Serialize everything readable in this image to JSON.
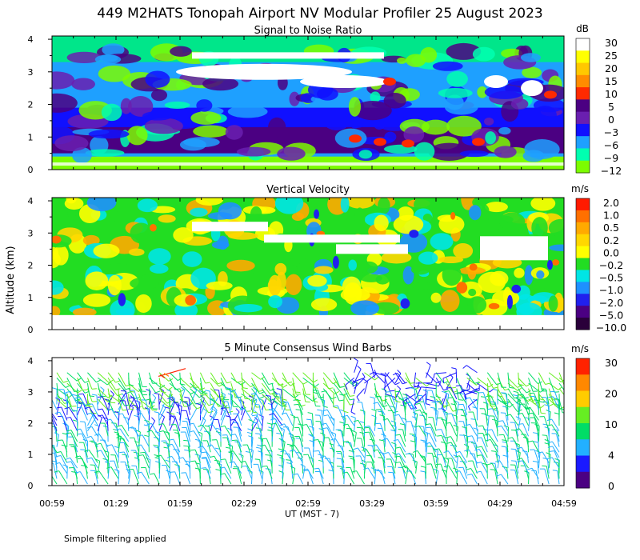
{
  "title": "449 M2HATS Tonopah Airport NV Modular Profiler 25 August 2023",
  "footnote": "Simple filtering applied",
  "chart_data": [
    {
      "type": "heatmap",
      "title": "Signal to Noise Ratio",
      "ylabel": "Altitude (km)",
      "xlabel": "UT  (MST - 7)",
      "ylim": [
        0,
        4.1
      ],
      "y_ticks": [
        "0",
        "1",
        "2",
        "3",
        "4"
      ],
      "x_ticks": [
        "00:59",
        "01:29",
        "01:59",
        "02:29",
        "02:59",
        "03:29",
        "03:59",
        "04:29",
        "04:59"
      ],
      "colorbar_unit": "dB",
      "colorbar_labels": [
        "30",
        "25",
        "20",
        "15",
        "10",
        "5",
        "0",
        "−3",
        "−6",
        "−9",
        "−12"
      ],
      "colorbar_colors": [
        "#ffffff",
        "#ffff00",
        "#ffc800",
        "#ff8c00",
        "#ff2a00",
        "#4b0082",
        "#6a1fb0",
        "#1010ff",
        "#1ea0ff",
        "#00ffb0",
        "#7cfc00"
      ]
    },
    {
      "type": "heatmap",
      "title": "Vertical Velocity",
      "ylabel": "Altitude (km)",
      "xlabel": "UT  (MST - 7)",
      "ylim": [
        0,
        4.1
      ],
      "y_ticks": [
        "0",
        "1",
        "2",
        "3",
        "4"
      ],
      "x_ticks": [
        "00:59",
        "01:29",
        "01:59",
        "02:29",
        "02:59",
        "03:29",
        "03:59",
        "04:29",
        "04:59"
      ],
      "colorbar_unit": "m/s",
      "colorbar_labels": [
        "2.0",
        "1.0",
        "0.5",
        "0.2",
        "0.0",
        "−0.2",
        "−0.5",
        "−1.0",
        "−2.0",
        "−5.0",
        "−10.0"
      ],
      "colorbar_colors": [
        "#ff1a00",
        "#ff7000",
        "#ffaa00",
        "#ffd700",
        "#ffff00",
        "#22dd22",
        "#00e5e5",
        "#1e90ff",
        "#2020ee",
        "#4b0082",
        "#2a003a"
      ]
    },
    {
      "type": "scatter",
      "title": "5 Minute Consensus Wind Barbs",
      "ylabel": "Altitude (km)",
      "xlabel": "UT  (MST - 7)",
      "ylim": [
        0,
        4.1
      ],
      "y_ticks": [
        "0",
        "1",
        "2",
        "3",
        "4"
      ],
      "x_ticks": [
        "00:59",
        "01:29",
        "01:59",
        "02:29",
        "02:59",
        "03:29",
        "03:59",
        "04:29",
        "04:59"
      ],
      "colorbar_unit": "m/s",
      "colorbar_labels": [
        "30",
        "20",
        "10",
        "4",
        "0"
      ],
      "colorbar_colors": [
        "#ff2200",
        "#ff8800",
        "#ffcc00",
        "#66ee22",
        "#00dd66",
        "#22b0ff",
        "#1a1aff",
        "#4b0082"
      ]
    }
  ]
}
